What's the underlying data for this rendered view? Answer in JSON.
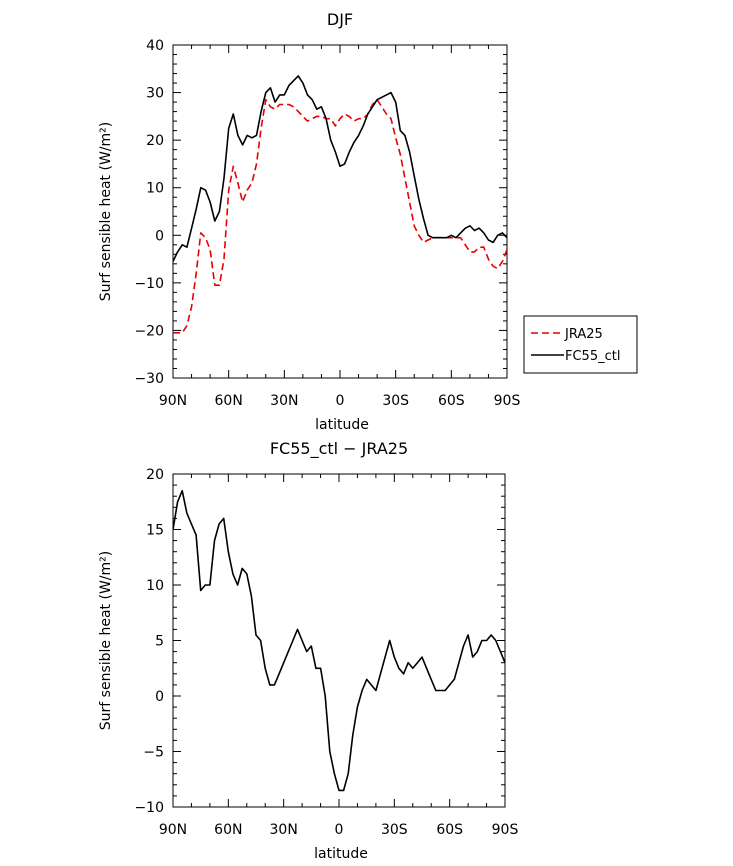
{
  "chart_data": [
    {
      "type": "line",
      "title": "DJF",
      "xlabel": "latitude",
      "ylabel": "Surf sensible heat (W/m²)",
      "ylim": [
        -30,
        40
      ],
      "y_ticks": [
        -30,
        -20,
        -10,
        0,
        10,
        20,
        30,
        40
      ],
      "y_tick_labels": [
        "−30",
        "−20",
        "−10",
        "0",
        "10",
        "20",
        "30",
        "40"
      ],
      "x_ticks": [
        90,
        60,
        30,
        0,
        -30,
        -60,
        -90
      ],
      "x_tick_labels": [
        "90N",
        "60N",
        "30N",
        "0",
        "30S",
        "60S",
        "90S"
      ],
      "legend_position": "right",
      "series": [
        {
          "name": "JRA25",
          "color": "#e60000",
          "style": "dashed",
          "x": [
            90,
            87.5,
            85,
            82.5,
            80,
            77.5,
            75,
            72.5,
            70,
            67.5,
            65,
            62.5,
            60,
            57.5,
            55,
            52.5,
            50,
            47.5,
            45,
            42.5,
            40,
            37.5,
            35,
            32.5,
            30,
            27.5,
            25,
            22.5,
            20,
            17.5,
            15,
            12.5,
            10,
            7.5,
            5,
            2.5,
            0,
            -2.5,
            -5,
            -7.5,
            -10,
            -12.5,
            -15,
            -17.5,
            -20,
            -22.5,
            -25,
            -27.5,
            -30,
            -32.5,
            -35,
            -37.5,
            -40,
            -42.5,
            -45,
            -47.5,
            -50,
            -52.5,
            -55,
            -57.5,
            -60,
            -62.5,
            -65,
            -67.5,
            -70,
            -72.5,
            -75,
            -77.5,
            -80,
            -82.5,
            -85,
            -87.5,
            -90
          ],
          "y": [
            -20.5,
            -20.5,
            -20.5,
            -19,
            -15,
            -8,
            0.5,
            -0.5,
            -3,
            -10.5,
            -10.5,
            -5,
            9.5,
            14.5,
            11,
            7,
            9.5,
            11,
            15,
            22.5,
            28.5,
            27,
            26.5,
            27.5,
            27.5,
            27.5,
            27,
            26,
            25,
            24,
            24.5,
            25,
            25,
            24.5,
            24.5,
            23,
            24.5,
            25.5,
            25,
            24,
            24.5,
            24.5,
            25.5,
            27.5,
            28.5,
            27,
            25.5,
            24.5,
            20.5,
            17,
            12,
            7,
            2,
            0,
            -1.5,
            -1,
            -0.5,
            -0.5,
            -0.5,
            -0.5,
            -0.5,
            -0.5,
            -0.5,
            -2,
            -3.5,
            -3.5,
            -2.5,
            -2.5,
            -5,
            -6.5,
            -7,
            -5.5,
            -3
          ]
        },
        {
          "name": "FC55_ctl",
          "color": "#000000",
          "style": "solid",
          "x": [
            90,
            87.5,
            85,
            82.5,
            80,
            77.5,
            75,
            72.5,
            70,
            67.5,
            65,
            62.5,
            60,
            57.5,
            55,
            52.5,
            50,
            47.5,
            45,
            42.5,
            40,
            37.5,
            35,
            32.5,
            30,
            27.5,
            25,
            22.5,
            20,
            17.5,
            15,
            12.5,
            10,
            7.5,
            5,
            2.5,
            0,
            -2.5,
            -5,
            -7.5,
            -10,
            -12.5,
            -15,
            -17.5,
            -20,
            -22.5,
            -25,
            -27.5,
            -30,
            -32.5,
            -35,
            -37.5,
            -40,
            -42.5,
            -45,
            -47.5,
            -50,
            -52.5,
            -55,
            -57.5,
            -60,
            -62.5,
            -65,
            -67.5,
            -70,
            -72.5,
            -75,
            -77.5,
            -80,
            -82.5,
            -85,
            -87.5,
            -90
          ],
          "y": [
            -5.5,
            -3.5,
            -2,
            -2.5,
            1.5,
            5.5,
            10,
            9.5,
            7,
            3,
            5,
            12,
            22.5,
            25.5,
            21,
            19,
            21,
            20.5,
            21,
            26,
            30,
            31,
            28,
            29.5,
            29.5,
            31.5,
            32.5,
            33.5,
            32,
            29.5,
            28.5,
            26.5,
            27,
            24.5,
            20,
            17.5,
            14.5,
            15,
            17.5,
            19.5,
            21,
            23,
            25.5,
            27,
            28.5,
            29,
            29.5,
            30,
            28,
            22,
            21,
            17.5,
            12.5,
            7.5,
            3.5,
            0,
            -0.5,
            -0.5,
            -0.5,
            -0.5,
            0,
            -0.5,
            0.5,
            1.5,
            2,
            1,
            1.5,
            0.5,
            -1,
            -1.5,
            0,
            0.5,
            -0.5
          ]
        }
      ]
    },
    {
      "type": "line",
      "title": "FC55_ctl − JRA25",
      "xlabel": "latitude",
      "ylabel": "Surf sensible heat (W/m²)",
      "ylim": [
        -10,
        20
      ],
      "y_ticks": [
        -10,
        -5,
        0,
        5,
        10,
        15,
        20
      ],
      "y_tick_labels": [
        "−10",
        "−5",
        "0",
        "5",
        "10",
        "15",
        "20"
      ],
      "x_ticks": [
        90,
        60,
        30,
        0,
        -30,
        -60,
        -90
      ],
      "x_tick_labels": [
        "90N",
        "60N",
        "30N",
        "0",
        "30S",
        "60S",
        "90S"
      ],
      "series": [
        {
          "color": "#000000",
          "style": "solid",
          "x": [
            90,
            87.5,
            85,
            82.5,
            80,
            77.5,
            75,
            72.5,
            70,
            67.5,
            65,
            62.5,
            60,
            57.5,
            55,
            52.5,
            50,
            47.5,
            45,
            42.5,
            40,
            37.5,
            35,
            32.5,
            30,
            27.5,
            25,
            22.5,
            20,
            17.5,
            15,
            12.5,
            10,
            7.5,
            5,
            2.5,
            0,
            -2.5,
            -5,
            -7.5,
            -10,
            -12.5,
            -15,
            -17.5,
            -20,
            -22.5,
            -25,
            -27.5,
            -30,
            -32.5,
            -35,
            -37.5,
            -40,
            -42.5,
            -45,
            -47.5,
            -50,
            -52.5,
            -55,
            -57.5,
            -60,
            -62.5,
            -65,
            -67.5,
            -70,
            -72.5,
            -75,
            -77.5,
            -80,
            -82.5,
            -85,
            -87.5,
            -90
          ],
          "y": [
            15,
            17.5,
            18.5,
            16.5,
            15.5,
            14.5,
            9.5,
            10,
            10,
            14,
            15.5,
            16,
            13,
            11,
            10,
            11.5,
            11,
            9,
            5.5,
            5,
            2.5,
            1,
            1,
            2,
            3,
            4,
            5,
            6,
            5,
            4,
            4.5,
            2.5,
            2.5,
            0,
            -5,
            -7,
            -8.5,
            -8.5,
            -7,
            -3.5,
            -1,
            0.5,
            1.5,
            1,
            0.5,
            2,
            3.5,
            5,
            3.5,
            2.5,
            2,
            3,
            2.5,
            3,
            3.5,
            2.5,
            1.5,
            0.5,
            0.5,
            0.5,
            1,
            1.5,
            3,
            4.5,
            5.5,
            3.5,
            4,
            5,
            5,
            5.5,
            5,
            4,
            3
          ]
        }
      ]
    }
  ]
}
